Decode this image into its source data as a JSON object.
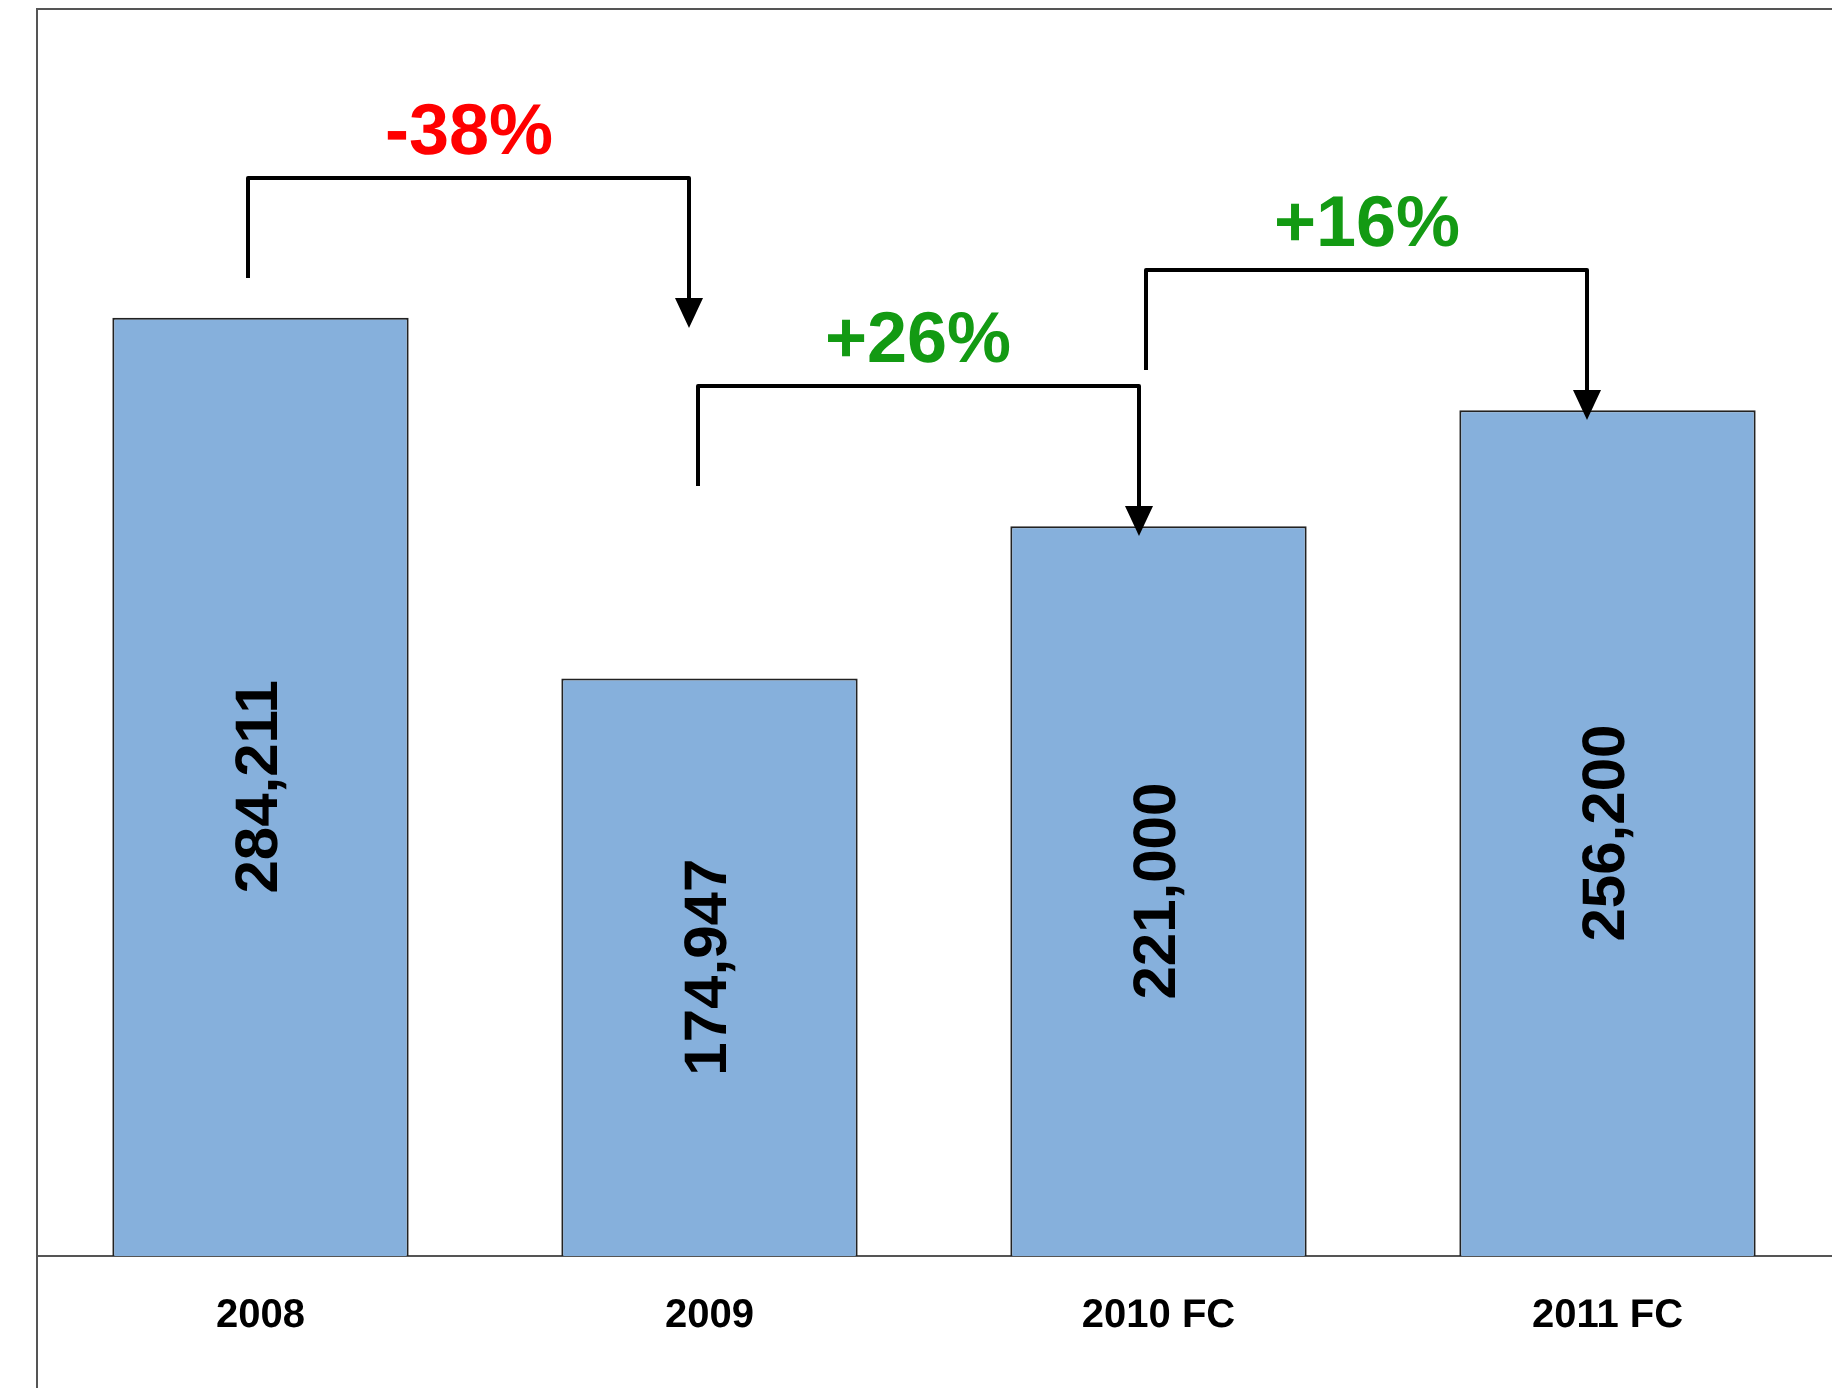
{
  "chart_data": {
    "type": "bar",
    "categories": [
      "2008",
      "2009",
      "2010 FC",
      "2011 FC"
    ],
    "values": [
      284211,
      174947,
      221000,
      256200
    ],
    "value_labels": [
      "284,211",
      "174,947",
      "221,000",
      "256,200"
    ],
    "color": "#86b0dc",
    "grid": false,
    "legend": false,
    "annotations": [
      "-38%",
      "+26%",
      "+16%"
    ]
  }
}
